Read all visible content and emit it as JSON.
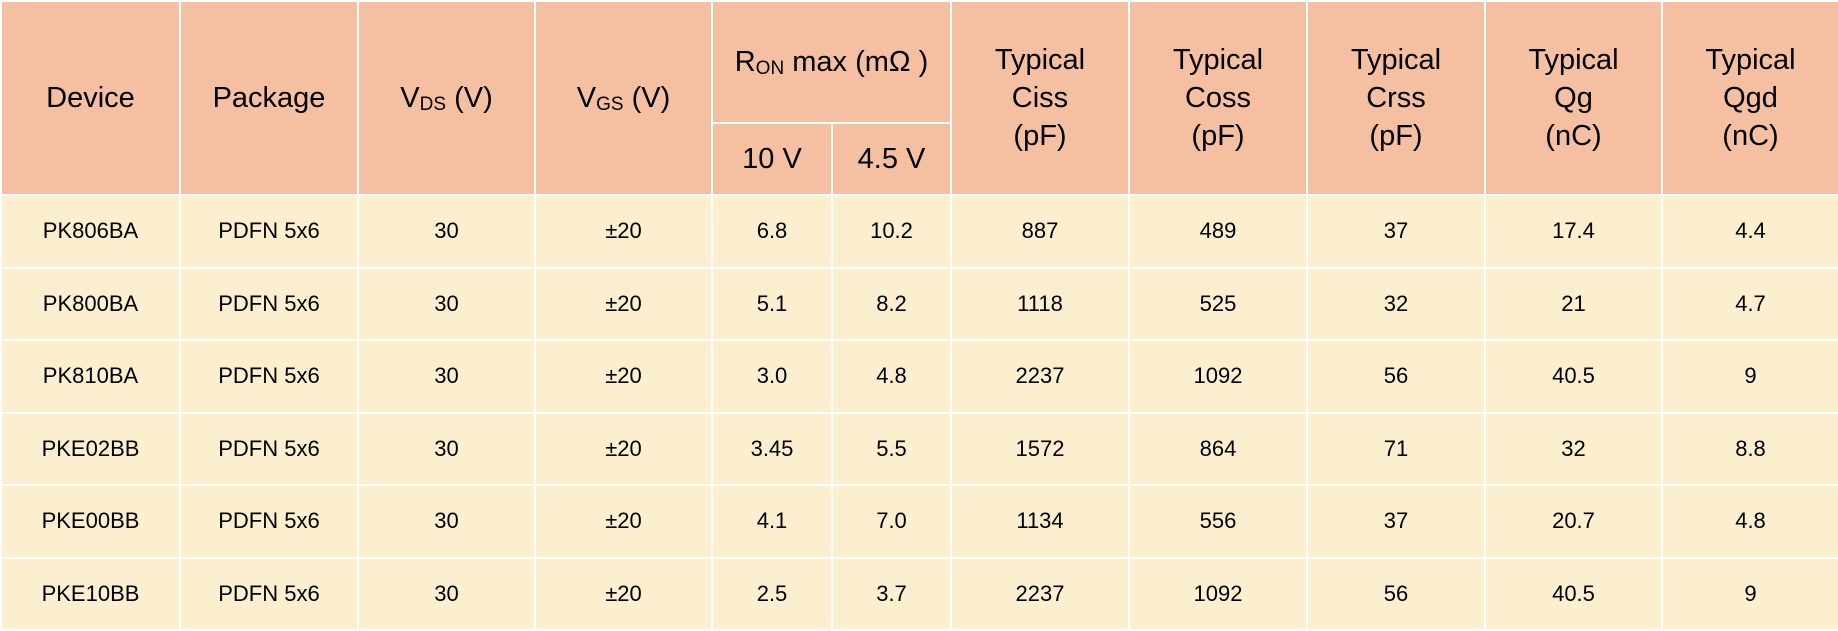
{
  "headers": {
    "device": "Device",
    "package": "Package",
    "vds": {
      "main": "V",
      "sub": "DS",
      "unit": "(V)"
    },
    "vgs": {
      "main": "V",
      "sub": "GS",
      "unit": "(V)"
    },
    "ron": {
      "main": "R",
      "sub": "ON",
      "rest": " max (mΩ )",
      "col_10v": "10 V",
      "col_45v": "4.5 V"
    },
    "ciss": {
      "line1": "Typical",
      "line2": "Ciss",
      "line3": "(pF)"
    },
    "coss": {
      "line1": "Typical",
      "line2": "Coss",
      "line3": "(pF)"
    },
    "crss": {
      "line1": "Typical",
      "line2": "Crss",
      "line3": "(pF)"
    },
    "qg": {
      "line1": "Typical",
      "line2": "Qg",
      "line3": "(nC)"
    },
    "qgd": {
      "line1": "Typical",
      "line2": "Qgd",
      "line3": "(nC)"
    }
  },
  "rows": [
    {
      "device": "PK806BA",
      "package": "PDFN 5x6",
      "vds": "30",
      "vgs": "±20",
      "ron_10v": "6.8",
      "ron_45v": "10.2",
      "ciss": "887",
      "coss": "489",
      "crss": "37",
      "qg": "17.4",
      "qgd": "4.4"
    },
    {
      "device": "PK800BA",
      "package": "PDFN 5x6",
      "vds": "30",
      "vgs": "±20",
      "ron_10v": "5.1",
      "ron_45v": "8.2",
      "ciss": "1118",
      "coss": "525",
      "crss": "32",
      "qg": "21",
      "qgd": "4.7"
    },
    {
      "device": "PK810BA",
      "package": "PDFN 5x6",
      "vds": "30",
      "vgs": "±20",
      "ron_10v": "3.0",
      "ron_45v": "4.8",
      "ciss": "2237",
      "coss": "1092",
      "crss": "56",
      "qg": "40.5",
      "qgd": "9"
    },
    {
      "device": "PKE02BB",
      "package": "PDFN 5x6",
      "vds": "30",
      "vgs": "±20",
      "ron_10v": "3.45",
      "ron_45v": "5.5",
      "ciss": "1572",
      "coss": "864",
      "crss": "71",
      "qg": "32",
      "qgd": "8.8"
    },
    {
      "device": "PKE00BB",
      "package": "PDFN 5x6",
      "vds": "30",
      "vgs": "±20",
      "ron_10v": "4.1",
      "ron_45v": "7.0",
      "ciss": "1134",
      "coss": "556",
      "crss": "37",
      "qg": "20.7",
      "qgd": "4.8"
    },
    {
      "device": "PKE10BB",
      "package": "PDFN 5x6",
      "vds": "30",
      "vgs": "±20",
      "ron_10v": "2.5",
      "ron_45v": "3.7",
      "ciss": "2237",
      "coss": "1092",
      "crss": "56",
      "qg": "40.5",
      "qgd": "9"
    }
  ],
  "colors": {
    "header_bg": "#F5C0A2",
    "body_bg": "#FBEFCF",
    "grid": "#FFFFFF"
  }
}
